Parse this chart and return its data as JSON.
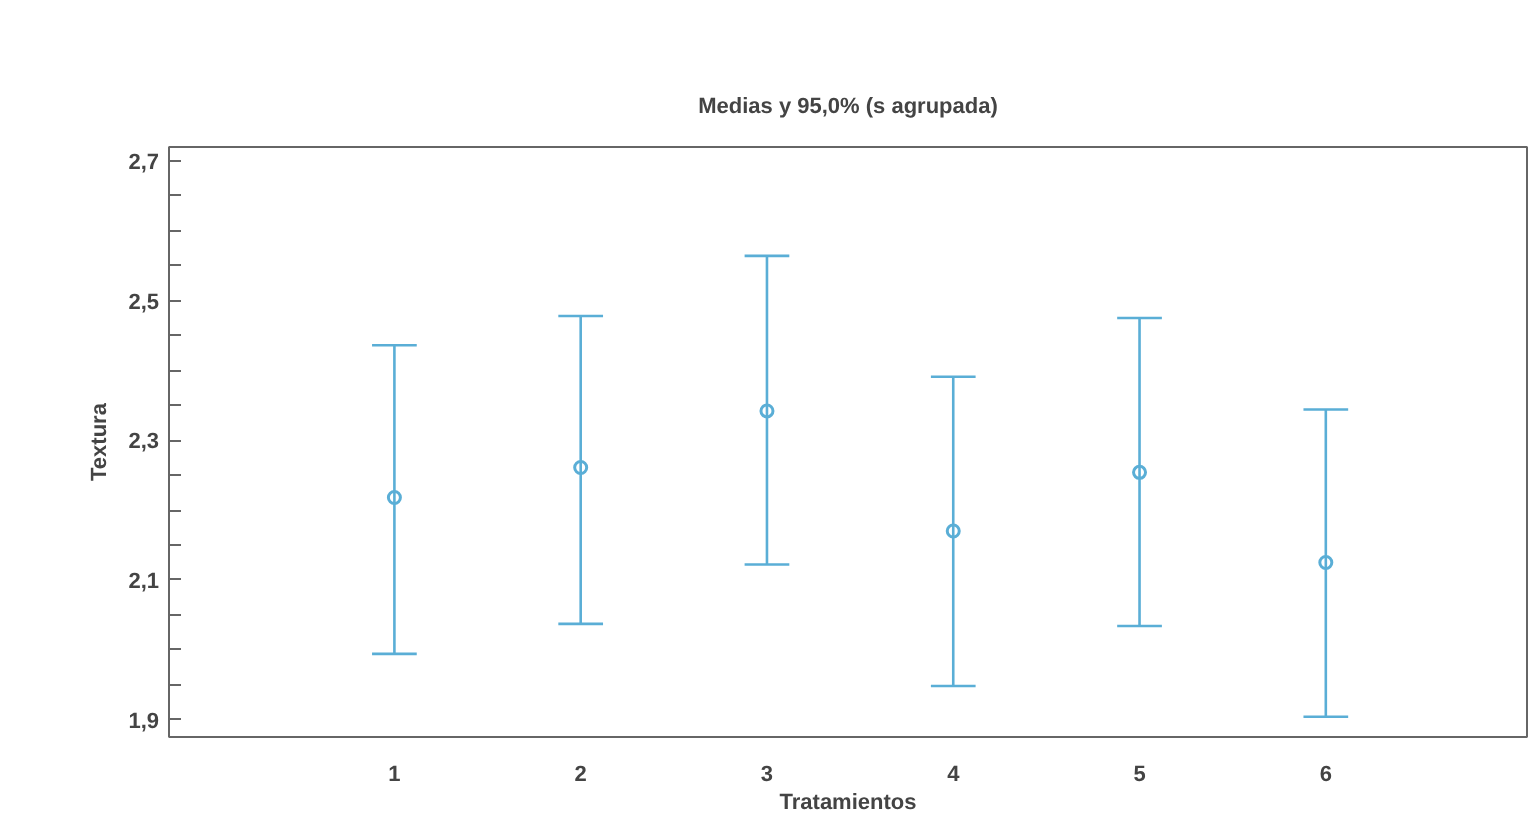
{
  "chart_data": {
    "type": "scatter",
    "title": "Medias y 95,0% (s agrupada)",
    "xlabel": "Tratamientos",
    "ylabel": "Textura",
    "categories": [
      "1",
      "2",
      "3",
      "4",
      "5",
      "6"
    ],
    "series": [
      {
        "color": "#5aaed6",
        "values": [
          2.218,
          2.261,
          2.342,
          2.17,
          2.254,
          2.125
        ],
        "errors": [
          [
            1.994,
            2.436
          ],
          [
            2.037,
            2.478
          ],
          [
            2.122,
            2.564
          ],
          [
            1.948,
            2.391
          ],
          [
            2.034,
            2.475
          ],
          [
            1.904,
            2.344
          ]
        ]
      }
    ],
    "marker": "circle",
    "grid": false,
    "ylim": [
      1.875,
      2.72
    ],
    "yticks": [
      {
        "value": 1.9,
        "label": "1,9"
      },
      {
        "value": 1.95,
        "label": null
      },
      {
        "value": 2.0,
        "label": null
      },
      {
        "value": 2.05,
        "label": null
      },
      {
        "value": 2.1,
        "label": "2,1"
      },
      {
        "value": 2.15,
        "label": null
      },
      {
        "value": 2.2,
        "label": null
      },
      {
        "value": 2.25,
        "label": null
      },
      {
        "value": 2.3,
        "label": "2,3"
      },
      {
        "value": 2.35,
        "label": null
      },
      {
        "value": 2.4,
        "label": null
      },
      {
        "value": 2.45,
        "label": null
      },
      {
        "value": 2.5,
        "label": "2,5"
      },
      {
        "value": 2.55,
        "label": null
      },
      {
        "value": 2.6,
        "label": null
      },
      {
        "value": 2.65,
        "label": null
      },
      {
        "value": 2.7,
        "label": "2,7"
      }
    ]
  }
}
